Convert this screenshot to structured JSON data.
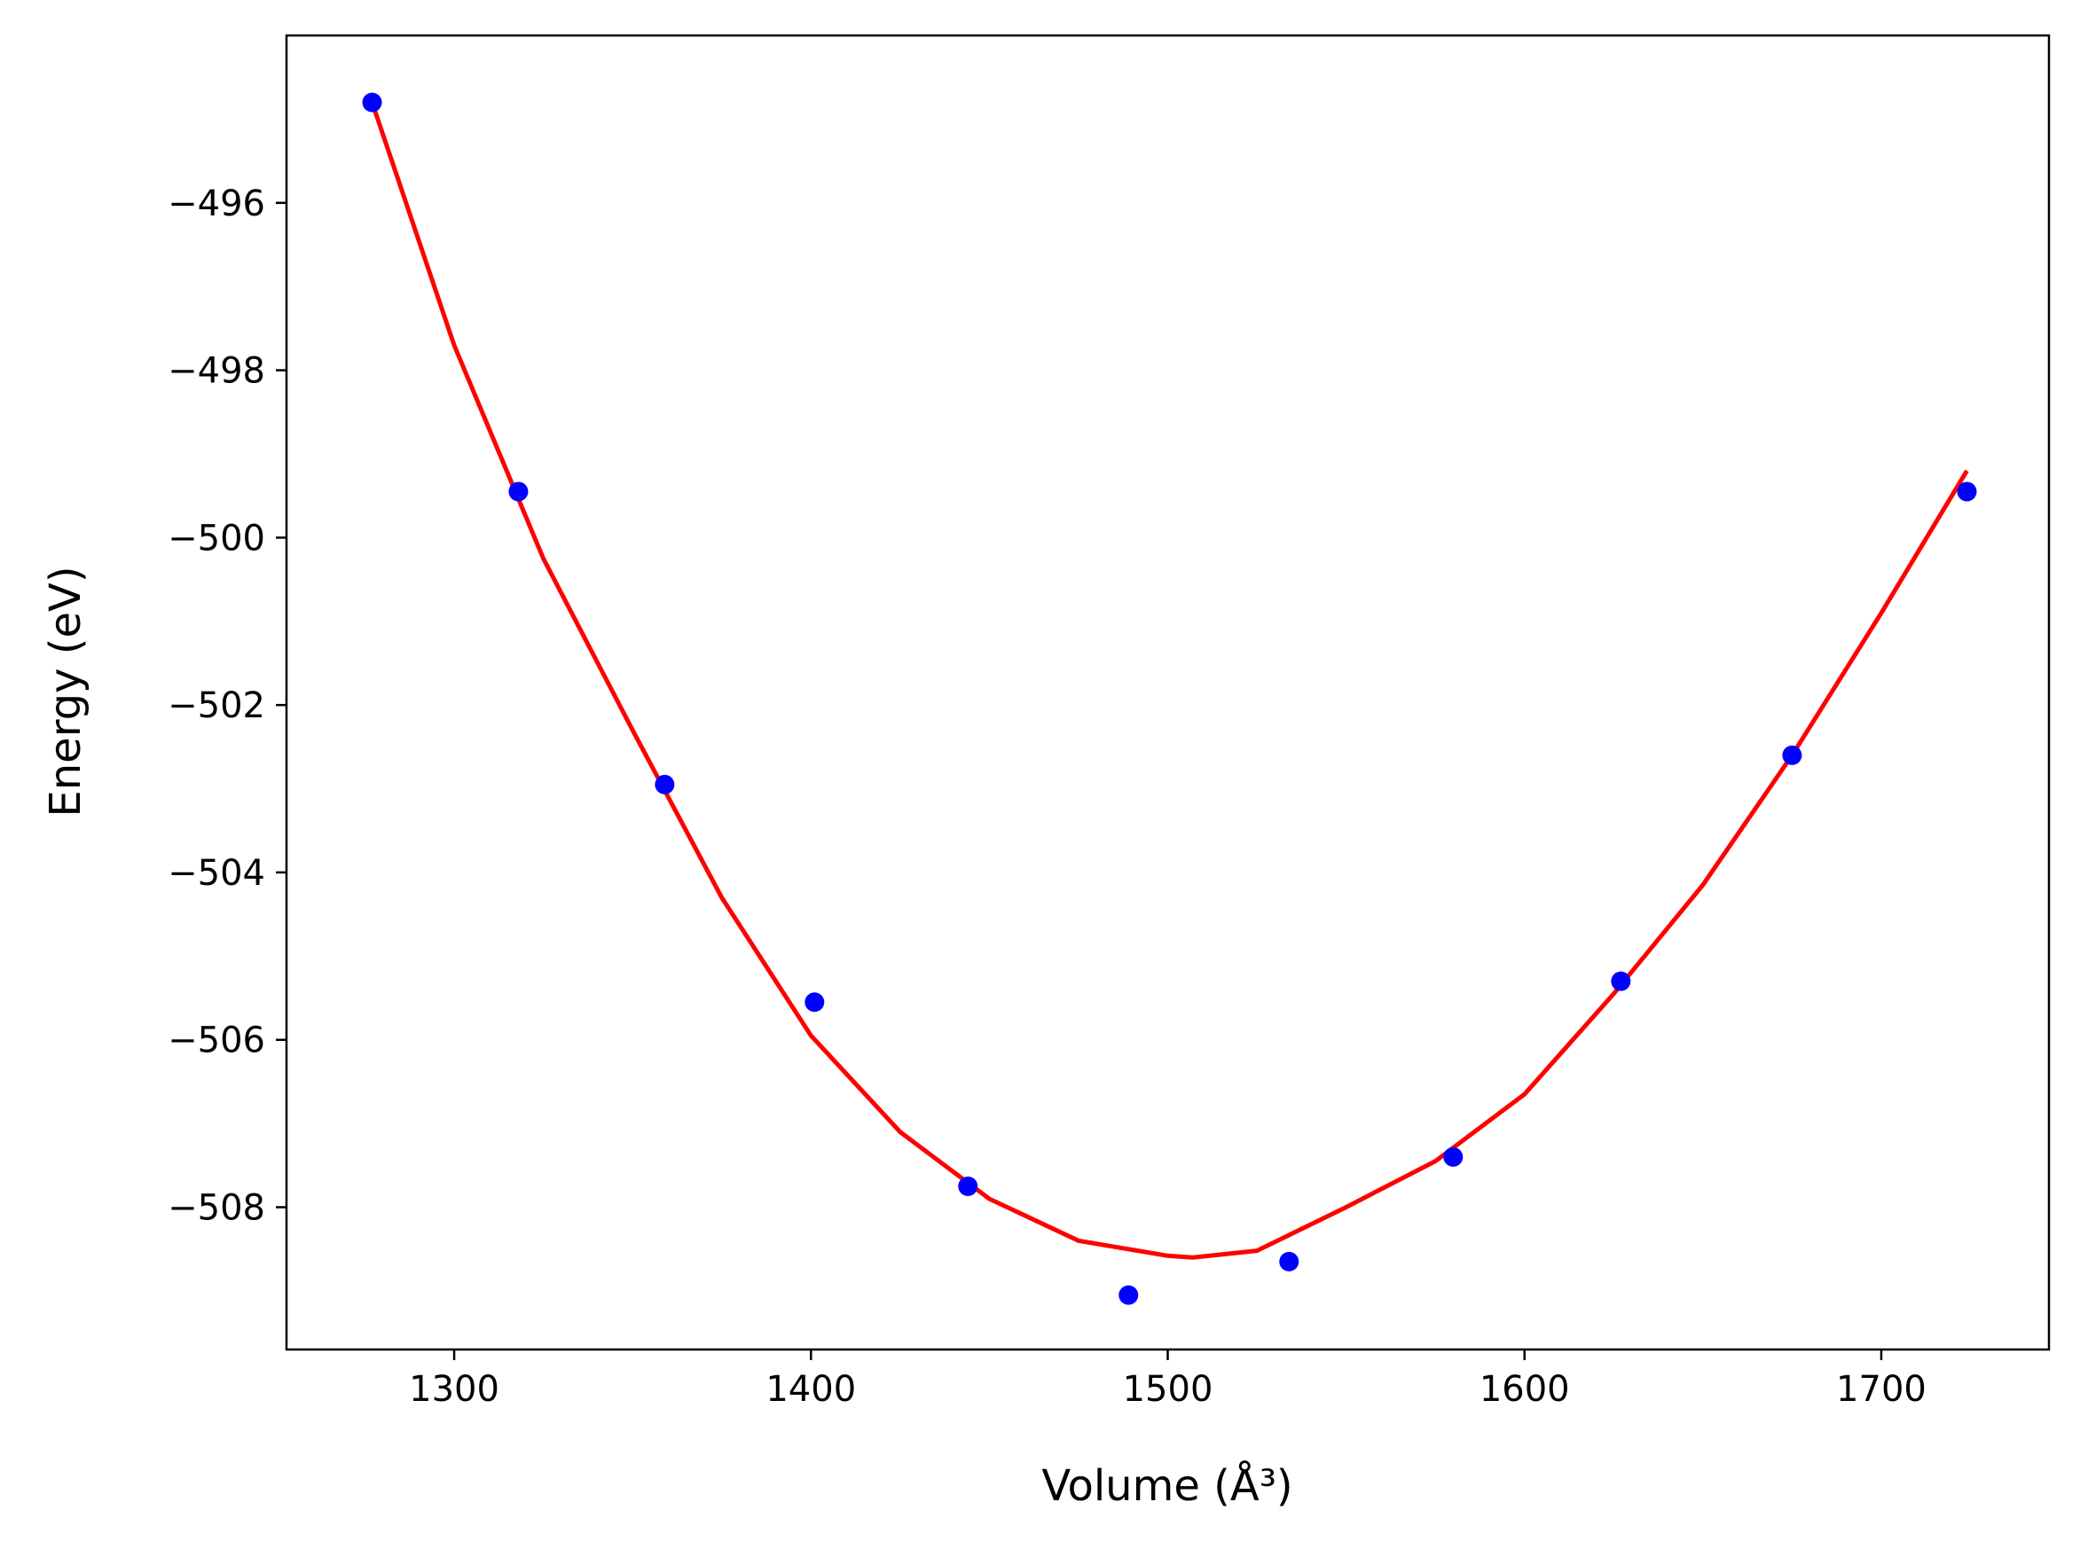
{
  "chart_data": {
    "type": "scatter",
    "xlabel": "Volume (Å³)",
    "ylabel": "Energy (eV)",
    "xlim": [
      1253,
      1747
    ],
    "ylim": [
      -509.7,
      -494.0
    ],
    "x_ticks": [
      1300,
      1400,
      1500,
      1600,
      1700
    ],
    "y_ticks": [
      -496,
      -498,
      -500,
      -502,
      -504,
      -506,
      -508
    ],
    "x_tick_labels": [
      "1300",
      "1400",
      "1500",
      "1600",
      "1700"
    ],
    "y_tick_labels": [
      "−496",
      "−498",
      "−500",
      "−502",
      "−504",
      "−506",
      "−508"
    ],
    "grid": false,
    "series": [
      {
        "kind": "points",
        "color": "#0000ff",
        "x": [
          1277,
          1318,
          1359,
          1401,
          1444,
          1489,
          1534,
          1580,
          1627,
          1675,
          1724
        ],
        "y": [
          -494.8,
          -499.45,
          -502.95,
          -505.55,
          -507.75,
          -509.05,
          -508.65,
          -507.4,
          -505.3,
          -502.6,
          -499.45
        ]
      },
      {
        "kind": "fit-line",
        "color": "#ff0000",
        "x": [
          1277,
          1300,
          1325,
          1350,
          1375,
          1400,
          1425,
          1450,
          1475,
          1500,
          1507,
          1525,
          1550,
          1575,
          1600,
          1625,
          1650,
          1675,
          1700,
          1724
        ],
        "y": [
          -494.8,
          -497.7,
          -500.25,
          -502.3,
          -504.3,
          -505.95,
          -507.1,
          -507.9,
          -508.4,
          -508.58,
          -508.6,
          -508.52,
          -508.0,
          -507.45,
          -506.65,
          -505.45,
          -504.15,
          -502.6,
          -500.9,
          -499.2
        ]
      }
    ]
  }
}
